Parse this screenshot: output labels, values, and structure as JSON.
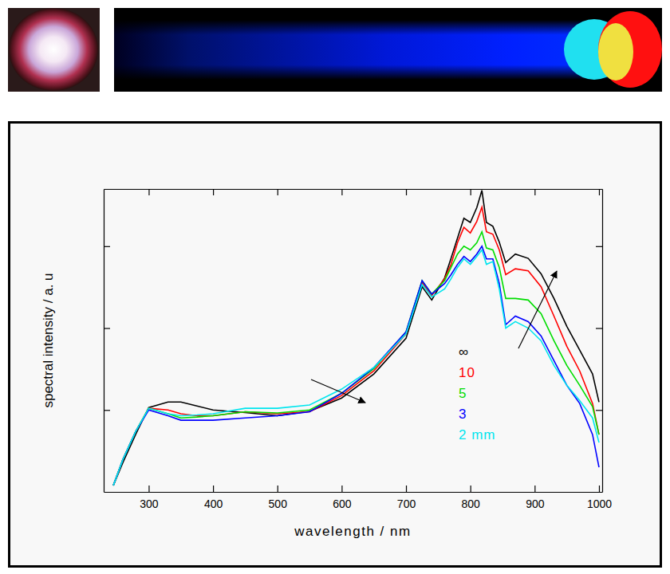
{
  "chart_data": {
    "type": "line",
    "x_label": "wavelength / nm",
    "y_label": "spectral intensity / a. u",
    "log": "y",
    "tick_labels": "x",
    "legend": "right",
    "xlim": [
      230,
      1005
    ],
    "xticks": [
      300,
      400,
      500,
      600,
      700,
      800,
      900,
      1000
    ],
    "ylim": [
      0.1,
      500
    ],
    "yticks": [
      1,
      10,
      100
    ],
    "x": [
      245,
      260,
      280,
      300,
      330,
      350,
      375,
      400,
      450,
      500,
      550,
      600,
      650,
      700,
      725,
      740,
      760,
      770,
      780,
      790,
      800,
      810,
      818,
      825,
      835,
      845,
      855,
      870,
      890,
      910,
      930,
      950,
      970,
      990,
      1000
    ],
    "series": [
      {
        "name": "∞",
        "color": "#000000",
        "values": [
          0.12,
          0.23,
          0.51,
          1.07,
          1.25,
          1.25,
          1.12,
          1.0,
          0.93,
          0.85,
          0.96,
          1.4,
          2.75,
          7.5,
          32,
          22,
          41,
          71,
          125,
          219,
          195,
          295,
          480,
          195,
          175,
          112,
          63,
          80,
          71,
          46,
          23,
          10.5,
          5.4,
          2.75,
          1.25
        ]
      },
      {
        "name": "10",
        "color": "#ff0000",
        "values": [
          0.12,
          0.25,
          0.55,
          1.05,
          1.0,
          0.9,
          0.85,
          0.85,
          0.95,
          0.9,
          0.95,
          1.5,
          3.0,
          8.5,
          36,
          25,
          40,
          60,
          110,
          170,
          145,
          200,
          300,
          150,
          140,
          90,
          45,
          53,
          50,
          32,
          14,
          6,
          3,
          1.2,
          0.5
        ]
      },
      {
        "name": "5",
        "color": "#00dd00",
        "values": [
          0.12,
          0.25,
          0.55,
          1.05,
          0.9,
          0.8,
          0.82,
          0.85,
          0.95,
          0.92,
          1.0,
          1.6,
          3.2,
          9,
          38,
          26,
          38,
          55,
          80,
          100,
          90,
          110,
          150,
          95,
          90,
          55,
          23,
          23,
          22,
          15,
          7,
          3.5,
          2,
          1.1,
          0.5
        ]
      },
      {
        "name": "3",
        "color": "#0000ff",
        "values": [
          0.12,
          0.25,
          0.55,
          1.0,
          0.85,
          0.75,
          0.75,
          0.75,
          0.8,
          0.85,
          0.95,
          1.6,
          3.3,
          9,
          38,
          26,
          35,
          45,
          60,
          75,
          65,
          80,
          100,
          70,
          70,
          35,
          11,
          14,
          12,
          8,
          4,
          2,
          1.2,
          0.5,
          0.2
        ]
      },
      {
        "name": "2 mm",
        "color": "#00e5ee",
        "values": [
          0.12,
          0.25,
          0.55,
          1.05,
          0.9,
          0.85,
          0.87,
          0.9,
          1.05,
          1.05,
          1.15,
          1.8,
          3.3,
          8.5,
          34,
          24,
          30,
          40,
          55,
          70,
          60,
          75,
          90,
          60,
          65,
          30,
          10,
          12,
          10,
          7,
          3.5,
          2,
          1.3,
          0.8,
          0.4
        ]
      }
    ]
  }
}
